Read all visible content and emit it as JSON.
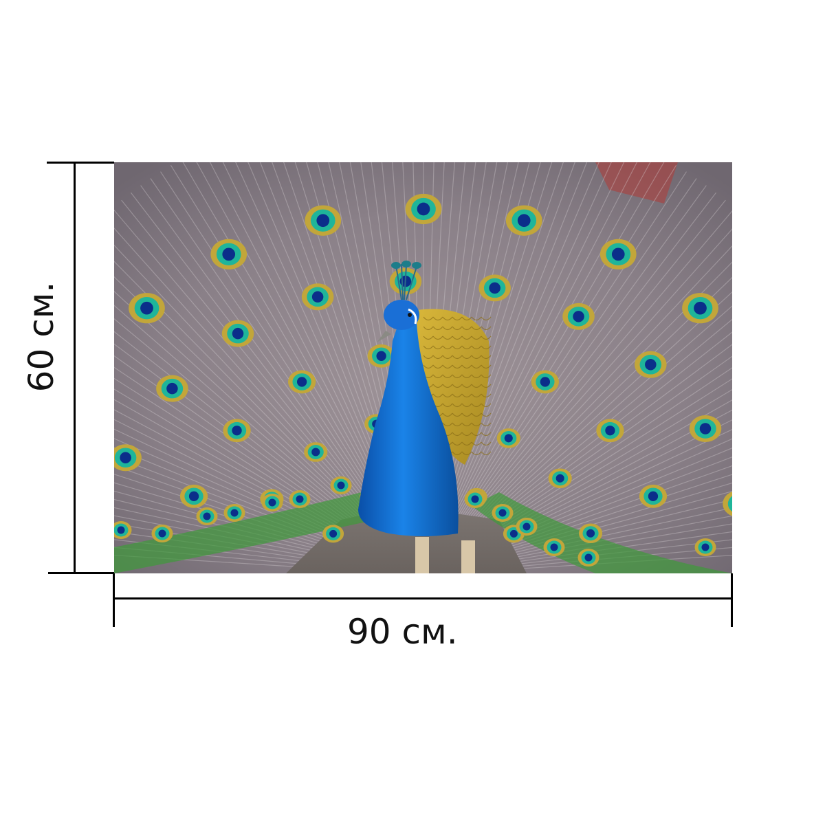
{
  "dimensions": {
    "width_label": "90 см.",
    "height_label": "60 см."
  },
  "photo": {
    "subject": "peacock-with-fanned-tail",
    "colors": {
      "body_blue": "#0b6fd1",
      "feather_grey": "#8c8489",
      "eye_gold": "#c2a63a",
      "eye_teal": "#1fb59a",
      "eye_center": "#0b2e8a"
    }
  }
}
